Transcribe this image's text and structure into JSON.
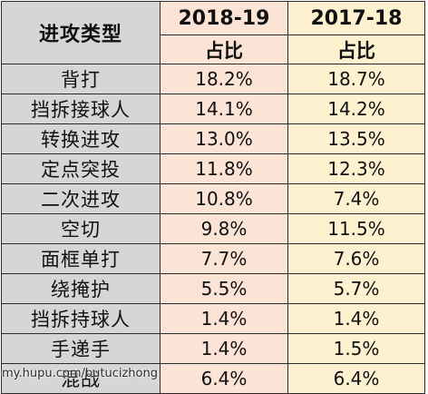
{
  "header": {
    "type_label": "进攻类型",
    "season_a": "2018-19",
    "season_b": "2017-18",
    "share_a": "占比",
    "share_b": "占比"
  },
  "rows": [
    {
      "type": "背打",
      "a": "18.2%",
      "b": "18.7%"
    },
    {
      "type": "挡拆接球人",
      "a": "14.1%",
      "b": "14.2%"
    },
    {
      "type": "转换进攻",
      "a": "13.0%",
      "b": "13.5%"
    },
    {
      "type": "定点突投",
      "a": "11.8%",
      "b": "12.3%"
    },
    {
      "type": "二次进攻",
      "a": "10.8%",
      "b": "7.4%"
    },
    {
      "type": "空切",
      "a": "9.8%",
      "b": "11.5%"
    },
    {
      "type": "面框单打",
      "a": "7.7%",
      "b": "7.6%"
    },
    {
      "type": "绕掩护",
      "a": "5.5%",
      "b": "5.7%"
    },
    {
      "type": "挡拆持球人",
      "a": "1.4%",
      "b": "1.4%"
    },
    {
      "type": "手递手",
      "a": "1.4%",
      "b": "1.5%"
    },
    {
      "type": "混战",
      "a": "6.4%",
      "b": "6.4%"
    }
  ],
  "watermark": "my.hupu.com/butucizhong",
  "colors": {
    "type_column": "#d6d6d6",
    "season_a_column": "#fbe3d5",
    "season_b_column": "#fdf1cf",
    "border": "#2b2b2b"
  }
}
